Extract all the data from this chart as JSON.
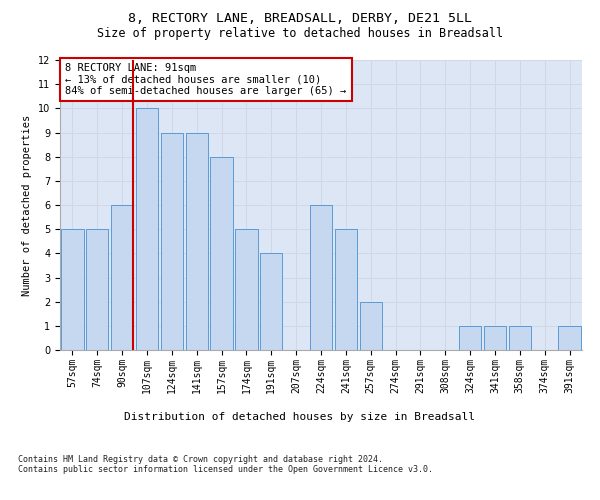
{
  "title": "8, RECTORY LANE, BREADSALL, DERBY, DE21 5LL",
  "subtitle": "Size of property relative to detached houses in Breadsall",
  "xlabel": "Distribution of detached houses by size in Breadsall",
  "ylabel": "Number of detached properties",
  "categories": [
    "57sqm",
    "74sqm",
    "90sqm",
    "107sqm",
    "124sqm",
    "141sqm",
    "157sqm",
    "174sqm",
    "191sqm",
    "207sqm",
    "224sqm",
    "241sqm",
    "257sqm",
    "274sqm",
    "291sqm",
    "308sqm",
    "324sqm",
    "341sqm",
    "358sqm",
    "374sqm",
    "391sqm"
  ],
  "values": [
    5,
    5,
    6,
    10,
    9,
    9,
    8,
    5,
    4,
    0,
    6,
    5,
    2,
    0,
    0,
    0,
    1,
    1,
    1,
    0,
    1
  ],
  "bar_color": "#c5d8f0",
  "bar_edge_color": "#5b9bd5",
  "property_line_color": "#cc0000",
  "annotation_text": "8 RECTORY LANE: 91sqm\n← 13% of detached houses are smaller (10)\n84% of semi-detached houses are larger (65) →",
  "annotation_box_color": "#ffffff",
  "annotation_box_edge_color": "#cc0000",
  "ylim": [
    0,
    12
  ],
  "yticks": [
    0,
    1,
    2,
    3,
    4,
    5,
    6,
    7,
    8,
    9,
    10,
    11,
    12
  ],
  "grid_color": "#d0d8e8",
  "background_color": "#dce6f5",
  "footer_text": "Contains HM Land Registry data © Crown copyright and database right 2024.\nContains public sector information licensed under the Open Government Licence v3.0.",
  "title_fontsize": 9.5,
  "subtitle_fontsize": 8.5,
  "xlabel_fontsize": 8,
  "ylabel_fontsize": 7.5,
  "tick_fontsize": 7,
  "annotation_fontsize": 7.5,
  "footer_fontsize": 6
}
